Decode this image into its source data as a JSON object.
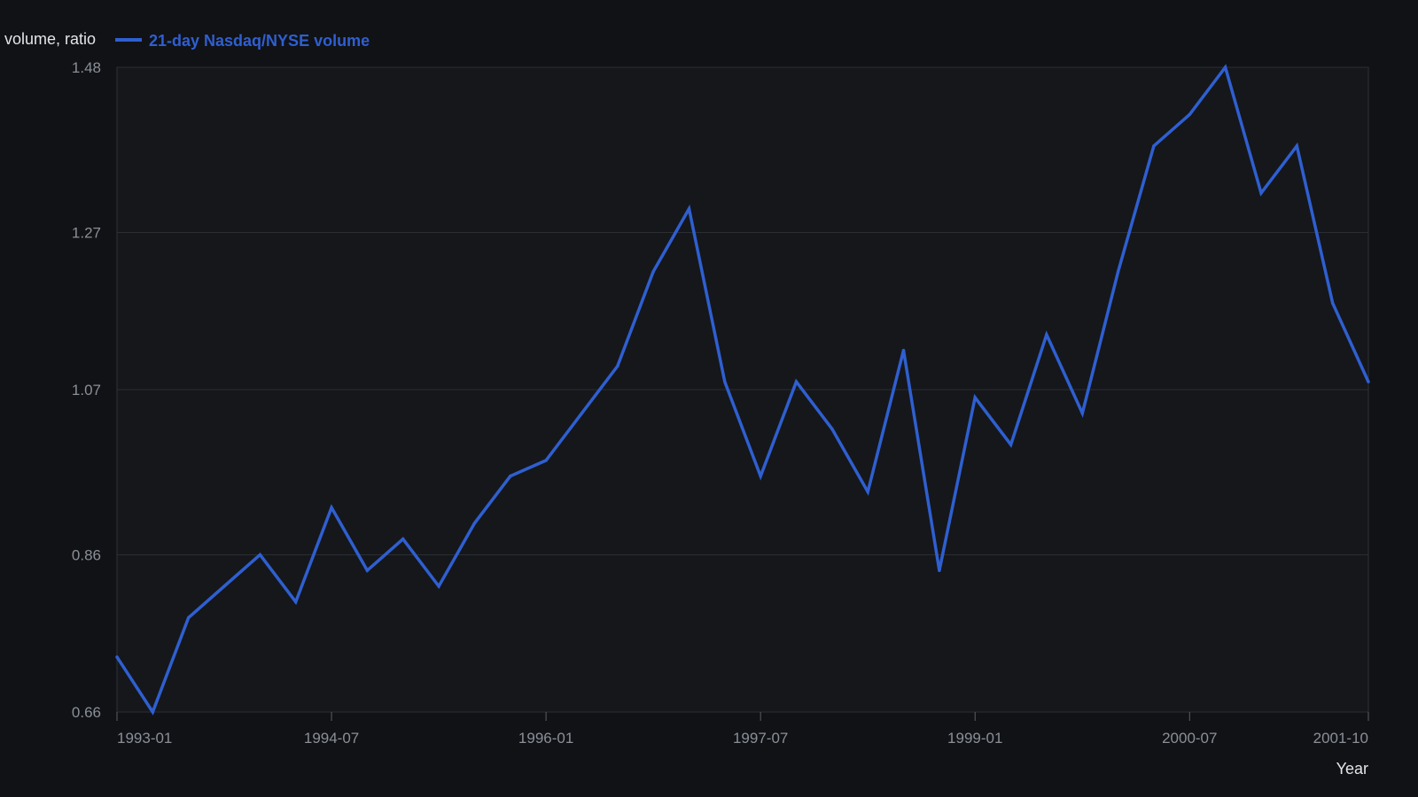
{
  "chart_data": {
    "type": "line",
    "ylabel": "volume, ratio",
    "xlabel": "Year",
    "ylim": [
      0.66,
      1.48
    ],
    "xlim": [
      "1993-01",
      "2001-10"
    ],
    "y_ticks": [
      "0.66",
      "0.86",
      "1.07",
      "1.27",
      "1.48"
    ],
    "x_ticks": [
      "1993-01",
      "1994-07",
      "1996-01",
      "1997-07",
      "1999-01",
      "2000-07",
      "2001-10"
    ],
    "grid": true,
    "legend_position": "top-left",
    "series": [
      {
        "name": "21-day Nasdaq/NYSE volume",
        "color": "#2f5fd0",
        "x": [
          "1993-01",
          "1993-04",
          "1993-07",
          "1993-10",
          "1994-01",
          "1994-04",
          "1994-07",
          "1994-10",
          "1995-01",
          "1995-04",
          "1995-07",
          "1995-10",
          "1996-01",
          "1996-04",
          "1996-07",
          "1996-10",
          "1997-01",
          "1997-04",
          "1997-07",
          "1997-10",
          "1998-01",
          "1998-04",
          "1998-07",
          "1998-10",
          "1999-01",
          "1999-04",
          "1999-07",
          "1999-10",
          "2000-01",
          "2000-04",
          "2000-07",
          "2000-10",
          "2001-01",
          "2001-04",
          "2001-07",
          "2001-10"
        ],
        "values": [
          0.73,
          0.66,
          0.78,
          0.82,
          0.86,
          0.8,
          0.92,
          0.84,
          0.88,
          0.82,
          0.9,
          0.96,
          0.98,
          1.04,
          1.1,
          1.22,
          1.3,
          1.08,
          0.96,
          1.08,
          1.02,
          0.94,
          1.12,
          0.84,
          1.06,
          1.0,
          1.14,
          1.04,
          1.22,
          1.38,
          1.42,
          1.48,
          1.32,
          1.38,
          1.18,
          1.08
        ]
      }
    ]
  }
}
